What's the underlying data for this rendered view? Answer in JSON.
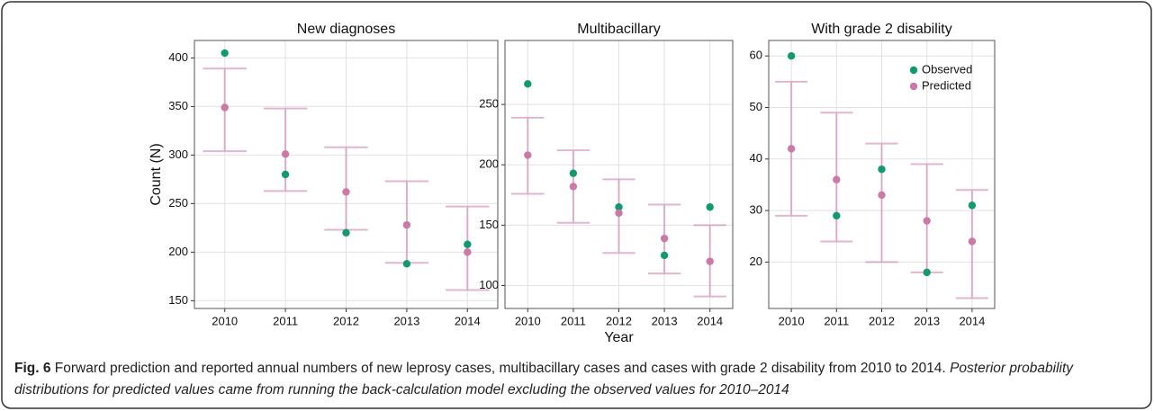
{
  "chart_data": [
    {
      "type": "errorbar",
      "title": "New diagnoses",
      "ylabel": "Count (N)",
      "categories": [
        "2010",
        "2011",
        "2012",
        "2013",
        "2014"
      ],
      "series": [
        {
          "name": "Observed",
          "color": "#109a6e",
          "values": [
            405,
            280,
            220,
            188,
            208
          ]
        },
        {
          "name": "Predicted",
          "color": "#cc79a7",
          "values": [
            349,
            301,
            262,
            228,
            200
          ],
          "lower": [
            304,
            263,
            223,
            189,
            161
          ],
          "upper": [
            389,
            348,
            308,
            273,
            247
          ]
        }
      ],
      "ylim": [
        142,
        418
      ],
      "yticks": [
        150,
        200,
        250,
        300,
        350,
        400
      ],
      "grid": true
    },
    {
      "type": "errorbar",
      "title": "Multibacillary",
      "xlabel": "Year",
      "categories": [
        "2010",
        "2011",
        "2012",
        "2013",
        "2014"
      ],
      "series": [
        {
          "name": "Observed",
          "color": "#109a6e",
          "values": [
            267,
            193,
            165,
            125,
            165
          ]
        },
        {
          "name": "Predicted",
          "color": "#cc79a7",
          "values": [
            208,
            182,
            160,
            139,
            120
          ],
          "lower": [
            176,
            152,
            127,
            110,
            91
          ],
          "upper": [
            239,
            212,
            188,
            167,
            150
          ]
        }
      ],
      "ylim": [
        81,
        303
      ],
      "yticks": [
        100,
        150,
        200,
        250
      ],
      "grid": true
    },
    {
      "type": "errorbar",
      "title": "With grade 2 disability",
      "categories": [
        "2010",
        "2011",
        "2012",
        "2013",
        "2014"
      ],
      "series": [
        {
          "name": "Observed",
          "color": "#109a6e",
          "values": [
            60,
            29,
            38,
            18,
            31
          ]
        },
        {
          "name": "Predicted",
          "color": "#cc79a7",
          "values": [
            42,
            36,
            33,
            28,
            24
          ],
          "lower": [
            29,
            24,
            20,
            18,
            13
          ],
          "upper": [
            55,
            49,
            43,
            39,
            34
          ]
        }
      ],
      "ylim": [
        11,
        63
      ],
      "yticks": [
        20,
        30,
        40,
        50,
        60
      ],
      "grid": true,
      "legend": "upper right"
    }
  ],
  "caption": {
    "label": "Fig. 6",
    "text": "Forward prediction and reported annual numbers of new leprosy cases, multibacillary cases and cases with grade 2 disability from 2010 to 2014.",
    "note": "Posterior probability distributions for predicted values came from running the back-calculation model excluding the observed values for 2010–2014"
  }
}
